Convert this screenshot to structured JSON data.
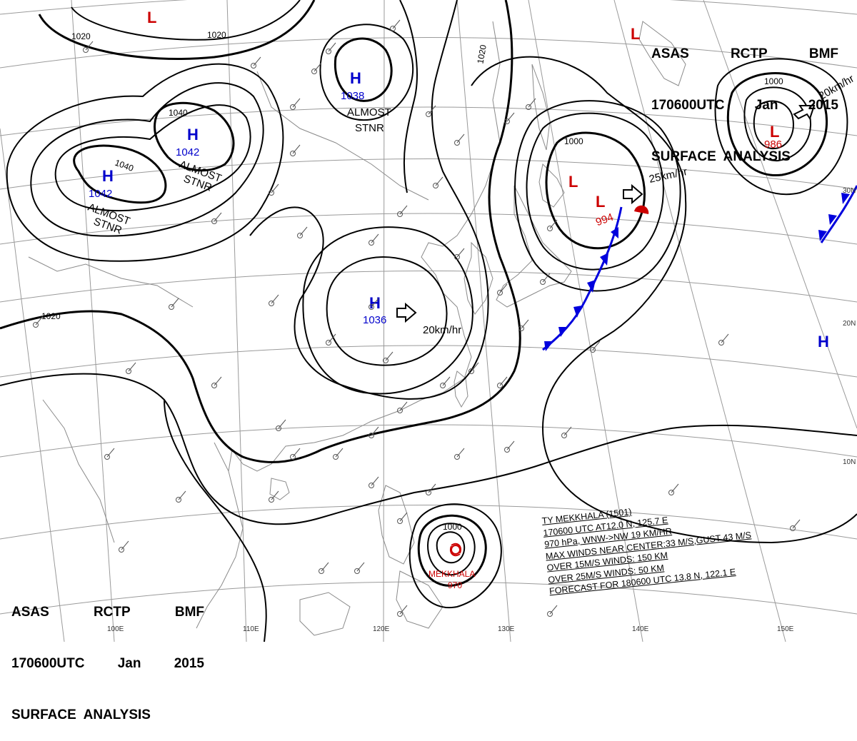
{
  "header_top_right": {
    "line1": [
      "ASAS",
      "RCTP",
      "BMF"
    ],
    "line2": [
      "170600UTC",
      "Jan",
      "2015"
    ],
    "line3": "SURFACE  ANALYSIS"
  },
  "header_bottom_left": {
    "line1": [
      "ASAS",
      "RCTP",
      "BMF"
    ],
    "line2": [
      "170600UTC",
      "Jan",
      "2015"
    ],
    "line3": "SURFACE  ANALYSIS"
  },
  "pressure_centers": [
    {
      "type": "H",
      "value": "1042",
      "color": "#0000cc"
    },
    {
      "type": "H",
      "value": "1042",
      "color": "#0000cc"
    },
    {
      "type": "H",
      "value": "1038",
      "color": "#0000cc"
    },
    {
      "type": "H",
      "value": "1036",
      "color": "#0000cc"
    },
    {
      "type": "H",
      "value": "",
      "color": "#0000cc"
    },
    {
      "type": "L",
      "value": "994",
      "color": "#cc0000"
    },
    {
      "type": "L",
      "value": "",
      "color": "#cc0000"
    },
    {
      "type": "L",
      "value": "986",
      "color": "#cc0000"
    },
    {
      "type": "L",
      "value": "",
      "color": "#cc0000"
    },
    {
      "type": "L",
      "value": "",
      "color": "#cc0000"
    }
  ],
  "center_notes": {
    "stnr_1042a": [
      "ALMOST",
      "STNR"
    ],
    "stnr_1042b": [
      "ALMOST",
      "STNR"
    ],
    "stnr_1038": [
      "ALMOST",
      "STNR"
    ]
  },
  "motion_labels": {
    "h1036": "20km/hr",
    "l994": "25km/hr",
    "l986": "20km/hr"
  },
  "isobar_labels": {
    "a": "1020",
    "b": "1020",
    "c": "1020",
    "d": "1020",
    "e": "1040",
    "f": "1040",
    "g": "1000",
    "h": "1000",
    "i": "1000"
  },
  "longitudes": [
    "100E",
    "110E",
    "120E",
    "130E",
    "140E",
    "150E"
  ],
  "latitudes": [
    "30N",
    "20N",
    "10N"
  ],
  "typhoon": {
    "name": "MEKKHALA",
    "pressure": "970",
    "details": [
      "TY  MEKKHALA  (1501)",
      "170600 UTC  AT12.0 N, 125.7 E",
      "970 hPa, WNW->NW  19 KM/HR",
      "MAX WINDS NEAR CENTER:33 M/S,GUST 43 M/S",
      "OVER 15M/S WINDS: 150 KM",
      "OVER 25M/S WINDS: 50 KM",
      "FORECAST FOR 180600 UTC 13.8 N, 122.1 E"
    ]
  },
  "colors": {
    "high": "#0000cc",
    "low": "#cc0000",
    "front": "#0000dd",
    "isobar": "#000000",
    "grid": "#9a9a9a",
    "coast": "#8a8a8a"
  }
}
